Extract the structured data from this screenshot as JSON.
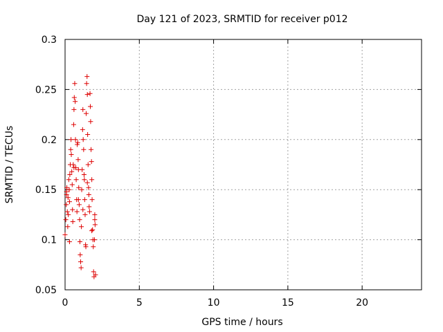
{
  "chart_data": {
    "type": "scatter",
    "title": "Day 121 of 2023, SRMTID for receiver p012",
    "xlabel": "GPS time / hours",
    "ylabel": "SRMTID / TECUs",
    "xlim": [
      0,
      24
    ],
    "ylim": [
      0.05,
      0.3
    ],
    "x_ticks": [
      0,
      5,
      10,
      15,
      20
    ],
    "x_tick_labels": [
      "0",
      "5",
      "10",
      "15",
      "20"
    ],
    "y_ticks": [
      0.05,
      0.1,
      0.15,
      0.2,
      0.25,
      0.3
    ],
    "y_tick_labels": [
      "0.05",
      "0.1",
      "0.15",
      "0.2",
      "0.25",
      "0.3"
    ],
    "grid": true,
    "marker": "+",
    "color": "#dd0000",
    "series": [
      {
        "name": "SRMTID",
        "points": [
          [
            0.0,
            0.105
          ],
          [
            0.05,
            0.12
          ],
          [
            0.08,
            0.135
          ],
          [
            0.1,
            0.148
          ],
          [
            0.12,
            0.152
          ],
          [
            0.15,
            0.128
          ],
          [
            0.18,
            0.113
          ],
          [
            0.2,
            0.142
          ],
          [
            0.22,
            0.125
          ],
          [
            0.25,
            0.16
          ],
          [
            0.28,
            0.15
          ],
          [
            0.3,
            0.138
          ],
          [
            0.32,
            0.165
          ],
          [
            0.35,
            0.175
          ],
          [
            0.38,
            0.19
          ],
          [
            0.4,
            0.2
          ],
          [
            0.42,
            0.185
          ],
          [
            0.45,
            0.168
          ],
          [
            0.48,
            0.155
          ],
          [
            0.5,
            0.13
          ],
          [
            0.52,
            0.118
          ],
          [
            0.55,
            0.175
          ],
          [
            0.58,
            0.215
          ],
          [
            0.6,
            0.23
          ],
          [
            0.62,
            0.242
          ],
          [
            0.65,
            0.256
          ],
          [
            0.68,
            0.238
          ],
          [
            0.7,
            0.2
          ],
          [
            0.72,
            0.172
          ],
          [
            0.75,
            0.16
          ],
          [
            0.78,
            0.14
          ],
          [
            0.8,
            0.128
          ],
          [
            0.82,
            0.195
          ],
          [
            0.85,
            0.197
          ],
          [
            0.88,
            0.18
          ],
          [
            0.9,
            0.17
          ],
          [
            0.92,
            0.152
          ],
          [
            0.95,
            0.135
          ],
          [
            0.98,
            0.12
          ],
          [
            1.0,
            0.098
          ],
          [
            1.02,
            0.085
          ],
          [
            1.05,
            0.078
          ],
          [
            1.08,
            0.072
          ],
          [
            1.1,
            0.113
          ],
          [
            1.12,
            0.15
          ],
          [
            1.15,
            0.17
          ],
          [
            1.18,
            0.21
          ],
          [
            1.2,
            0.23
          ],
          [
            1.22,
            0.2
          ],
          [
            1.25,
            0.19
          ],
          [
            1.28,
            0.165
          ],
          [
            1.3,
            0.16
          ],
          [
            1.32,
            0.14
          ],
          [
            1.35,
            0.125
          ],
          [
            1.38,
            0.095
          ],
          [
            1.4,
            0.093
          ],
          [
            1.42,
            0.226
          ],
          [
            1.45,
            0.256
          ],
          [
            1.48,
            0.263
          ],
          [
            1.5,
            0.245
          ],
          [
            1.52,
            0.205
          ],
          [
            1.55,
            0.175
          ],
          [
            1.58,
            0.152
          ],
          [
            1.6,
            0.145
          ],
          [
            1.62,
            0.133
          ],
          [
            1.65,
            0.128
          ],
          [
            1.68,
            0.246
          ],
          [
            1.7,
            0.233
          ],
          [
            1.72,
            0.218
          ],
          [
            1.75,
            0.19
          ],
          [
            1.78,
            0.178
          ],
          [
            1.8,
            0.16
          ],
          [
            1.82,
            0.14
          ],
          [
            1.85,
            0.11
          ],
          [
            1.88,
            0.1
          ],
          [
            1.9,
            0.093
          ],
          [
            1.92,
            0.068
          ],
          [
            1.95,
            0.063
          ],
          [
            1.98,
            0.1
          ],
          [
            2.0,
            0.125
          ],
          [
            2.02,
            0.115
          ],
          [
            2.05,
            0.065
          ],
          [
            0.1,
            0.145
          ],
          [
            0.3,
            0.098
          ],
          [
            0.6,
            0.172
          ],
          [
            0.9,
            0.14
          ],
          [
            1.2,
            0.13
          ],
          [
            1.5,
            0.157
          ],
          [
            1.8,
            0.109
          ],
          [
            2.0,
            0.12
          ]
        ]
      }
    ]
  }
}
